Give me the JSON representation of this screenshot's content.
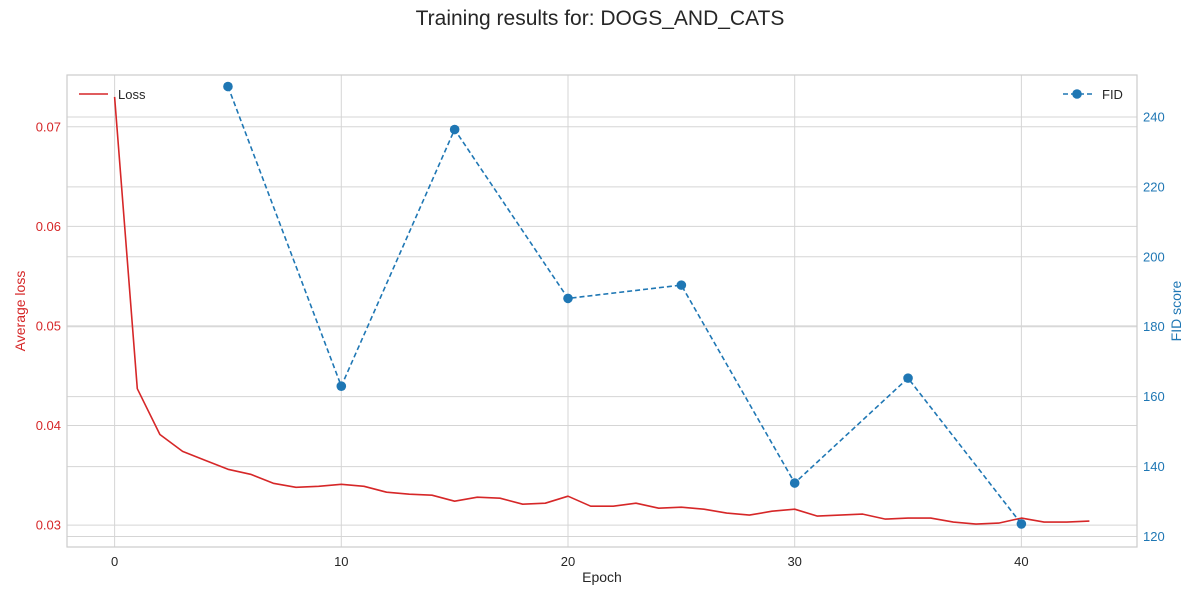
{
  "chart_data": {
    "type": "line",
    "title": "Training results for: DOGS_AND_CATS",
    "xlabel": "Epoch",
    "ylabel_left": "Average loss",
    "ylabel_right": "FID score",
    "xlim": [
      -2.1,
      45.1
    ],
    "ylim_left": [
      0.0278,
      0.0752
    ],
    "ylim_right": [
      117,
      252
    ],
    "x_ticks": [
      0,
      10,
      20,
      30,
      40
    ],
    "y_left_ticks": [
      0.03,
      0.04,
      0.05,
      0.06,
      0.07
    ],
    "y_right_ticks": [
      120,
      140,
      160,
      180,
      200,
      220,
      240
    ],
    "grid": true,
    "series": [
      {
        "name": "Loss",
        "axis": "left",
        "style": "solid",
        "color": "#d62728",
        "x": [
          0,
          1,
          2,
          3,
          4,
          5,
          6,
          7,
          8,
          9,
          10,
          11,
          12,
          13,
          14,
          15,
          16,
          17,
          18,
          19,
          20,
          21,
          22,
          23,
          24,
          25,
          26,
          27,
          28,
          29,
          30,
          31,
          32,
          33,
          34,
          35,
          36,
          37,
          38,
          39,
          40,
          41,
          42,
          43
        ],
        "values": [
          0.073,
          0.0437,
          0.0391,
          0.0374,
          0.0365,
          0.0356,
          0.0351,
          0.0342,
          0.0338,
          0.0339,
          0.0341,
          0.0339,
          0.0333,
          0.0331,
          0.033,
          0.0324,
          0.0328,
          0.0327,
          0.0321,
          0.0322,
          0.0329,
          0.0319,
          0.0319,
          0.0322,
          0.0317,
          0.0318,
          0.0316,
          0.0312,
          0.031,
          0.0314,
          0.0316,
          0.0309,
          0.031,
          0.0311,
          0.0306,
          0.0307,
          0.0307,
          0.0303,
          0.0301,
          0.0302,
          0.0307,
          0.0303,
          0.0303,
          0.0304
        ]
      },
      {
        "name": "FID",
        "axis": "right",
        "style": "dashed",
        "marker": "circle",
        "color": "#1f77b4",
        "x": [
          5,
          10,
          15,
          20,
          25,
          30,
          35,
          40
        ],
        "values": [
          248.7,
          163.0,
          236.4,
          188.1,
          191.9,
          135.3,
          165.3,
          123.6
        ]
      }
    ],
    "legend_left_position": "upper left",
    "legend_right_position": "upper right"
  }
}
